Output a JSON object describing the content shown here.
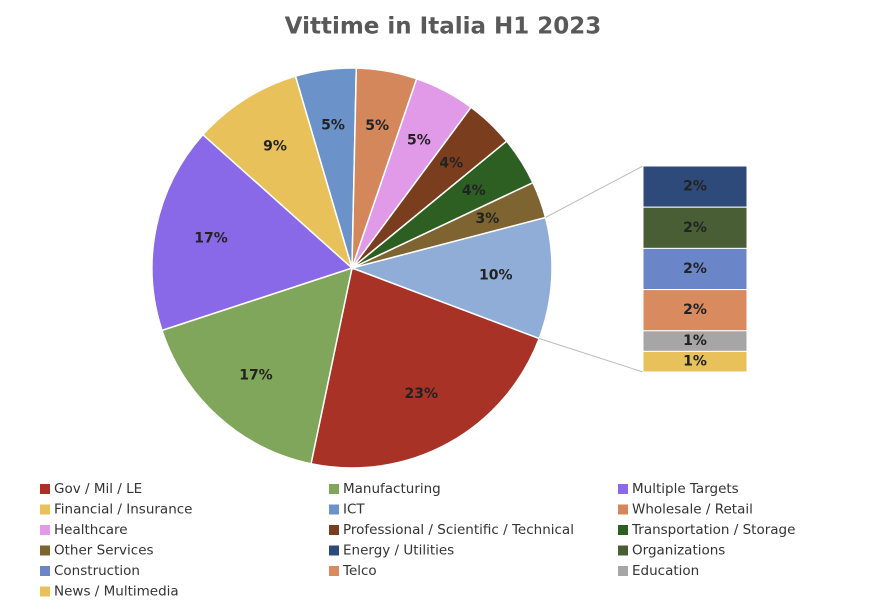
{
  "chart_data": {
    "type": "pie-of-bar",
    "title": "Vittime in Italia H1 2023",
    "categories": [
      "Gov / Mil / LE",
      "Manufacturing",
      "Multiple Targets",
      "Financial / Insurance",
      "ICT",
      "Wholesale / Retail",
      "Healthcare",
      "Professional / Scientific / Technical",
      "Transportation / Storage",
      "Other Services",
      "Energy / Utilities",
      "Organizations",
      "Construction",
      "Telco",
      "Education",
      "News / Multimedia"
    ],
    "values": [
      23,
      17,
      17,
      9,
      5,
      5,
      5,
      4,
      4,
      3,
      2,
      2,
      2,
      2,
      1,
      1
    ],
    "value_labels": [
      "23%",
      "17%",
      "17%",
      "9%",
      "5%",
      "5%",
      "5%",
      "4%",
      "4%",
      "3%",
      "2%",
      "2%",
      "2%",
      "2%",
      "1%",
      "1%"
    ],
    "colors": [
      "#a93226",
      "#7fa65a",
      "#8a69e8",
      "#e8c15a",
      "#6b93c9",
      "#d4875a",
      "#e09ae8",
      "#7a3e1e",
      "#2d5e22",
      "#7e6431",
      "#2d4a7a",
      "#4a5e35",
      "#6b85c9",
      "#d98a5f",
      "#a6a6a6",
      "#e8c15a"
    ],
    "secondary_count": 6,
    "other_value": 10,
    "other_value_label": "10%",
    "other_color": "#8fadd6"
  }
}
